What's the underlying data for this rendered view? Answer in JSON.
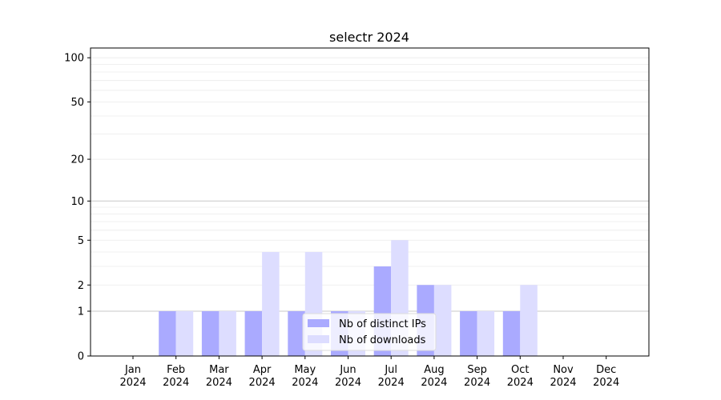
{
  "chart_data": {
    "type": "bar",
    "title": "selectr 2024",
    "xlabel": "",
    "ylabel": "",
    "y_scale": "log(1+y)",
    "ylim": [
      0,
      116
    ],
    "yticks": [
      0,
      1,
      2,
      5,
      10,
      20,
      50,
      100
    ],
    "grid": true,
    "legend_position": "lower-center",
    "categories": [
      "Jan\n2024",
      "Feb\n2024",
      "Mar\n2024",
      "Apr\n2024",
      "May\n2024",
      "Jun\n2024",
      "Jul\n2024",
      "Aug\n2024",
      "Sep\n2024",
      "Oct\n2024",
      "Nov\n2024",
      "Dec\n2024"
    ],
    "series": [
      {
        "name": "Nb of distinct IPs",
        "color": "#aaaaff",
        "values": [
          0,
          1,
          1,
          1,
          1,
          1,
          3,
          2,
          1,
          1,
          0,
          0
        ]
      },
      {
        "name": "Nb of downloads",
        "color": "#ddddff",
        "values": [
          0,
          1,
          1,
          4,
          4,
          1,
          5,
          2,
          1,
          2,
          0,
          0
        ]
      }
    ]
  }
}
